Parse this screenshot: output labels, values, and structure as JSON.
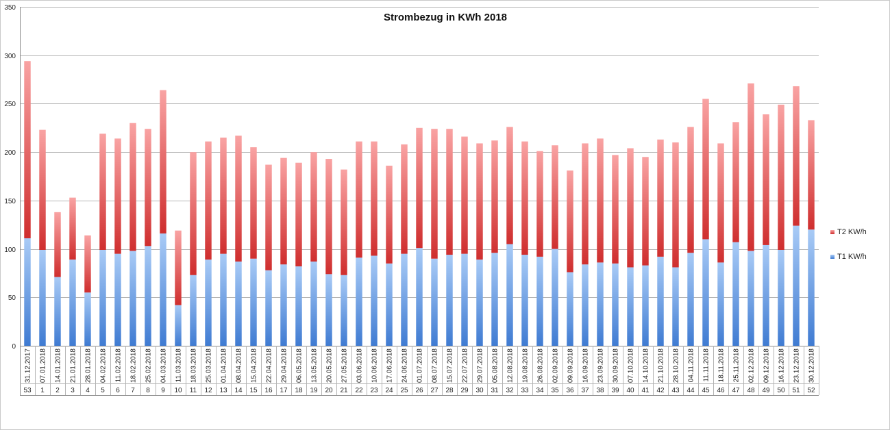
{
  "chart_data": {
    "type": "bar",
    "stacked": true,
    "title": "Strombezug in KWh 2018",
    "xlabel": "",
    "ylabel": "",
    "ylim": [
      0,
      350
    ],
    "yticks": [
      "0",
      "50",
      "100",
      "150",
      "200",
      "250",
      "300",
      "350"
    ],
    "grid": true,
    "legend_position": "right",
    "categories": [
      "31.12.2017",
      "07.01.2018",
      "14.01.2018",
      "21.01.2018",
      "28.01.2018",
      "04.02.2018",
      "11.02.2018",
      "18.02.2018",
      "25.02.2018",
      "04.03.2018",
      "11.03.2018",
      "18.03.2018",
      "25.03.2018",
      "01.04.2018",
      "08.04.2018",
      "15.04.2018",
      "22.04.2018",
      "29.04.2018",
      "06.05.2018",
      "13.05.2018",
      "20.05.2018",
      "27.05.2018",
      "03.06.2018",
      "10.06.2018",
      "17.06.2018",
      "24.06.2018",
      "01.07.2018",
      "08.07.2018",
      "15.07.2018",
      "22.07.2018",
      "29.07.2018",
      "05.08.2018",
      "12.08.2018",
      "19.08.2018",
      "26.08.2018",
      "02.09.2018",
      "09.09.2018",
      "16.09.2018",
      "23.09.2018",
      "30.09.2018",
      "07.10.2018",
      "14.10.2018",
      "21.10.2018",
      "28.10.2018",
      "04.11.2018",
      "11.11.2018",
      "18.11.2018",
      "25.11.2018",
      "02.12.2018",
      "09.12.2018",
      "16.12.2018",
      "23.12.2018",
      "30.12.2018"
    ],
    "weeks": [
      "53",
      "1",
      "2",
      "3",
      "4",
      "5",
      "6",
      "7",
      "8",
      "9",
      "10",
      "11",
      "12",
      "13",
      "14",
      "15",
      "16",
      "17",
      "18",
      "19",
      "20",
      "21",
      "22",
      "23",
      "24",
      "25",
      "26",
      "27",
      "28",
      "29",
      "30",
      "31",
      "32",
      "33",
      "34",
      "35",
      "36",
      "37",
      "38",
      "39",
      "40",
      "41",
      "42",
      "43",
      "44",
      "45",
      "46",
      "47",
      "48",
      "49",
      "50",
      "51",
      "52"
    ],
    "series": [
      {
        "name": "T1 KW/h",
        "color": "#4a86d8",
        "values": [
          111,
          99,
          71,
          89,
          55,
          99,
          95,
          98,
          103,
          116,
          42,
          73,
          89,
          95,
          87,
          90,
          78,
          84,
          82,
          87,
          74,
          73,
          91,
          93,
          85,
          95,
          101,
          90,
          94,
          95,
          89,
          96,
          105,
          94,
          92,
          100,
          76,
          84,
          86,
          85,
          81,
          83,
          92,
          81,
          96,
          110,
          86,
          107,
          98,
          104,
          99,
          124,
          120
        ]
      },
      {
        "name": "T2 KW/h",
        "color": "#d63a3a",
        "values": [
          183,
          124,
          67,
          64,
          59,
          120,
          119,
          132,
          121,
          148,
          77,
          127,
          122,
          120,
          130,
          115,
          109,
          110,
          107,
          113,
          119,
          109,
          120,
          118,
          101,
          113,
          124,
          134,
          130,
          121,
          120,
          116,
          121,
          117,
          109,
          107,
          105,
          125,
          128,
          112,
          123,
          112,
          121,
          129,
          130,
          145,
          123,
          124,
          173,
          135,
          150,
          144,
          113
        ]
      }
    ]
  }
}
